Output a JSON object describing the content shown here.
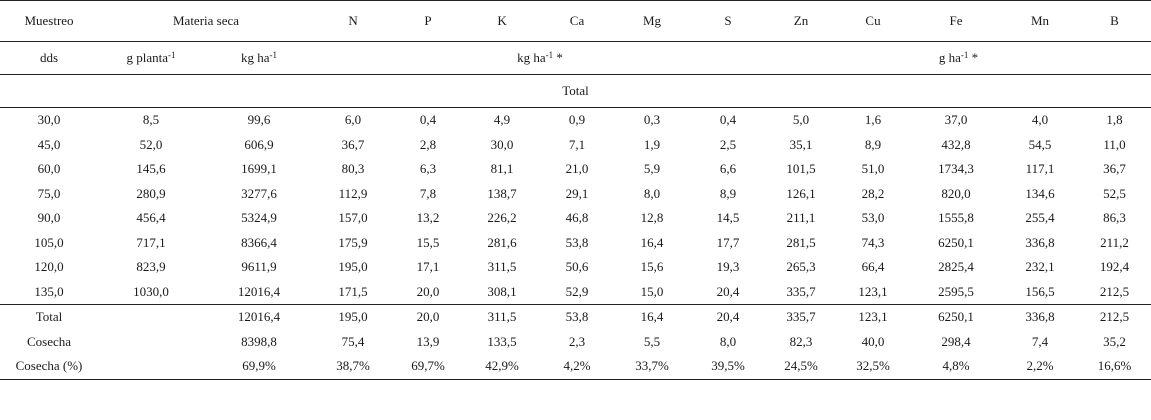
{
  "header": {
    "muestreo": "Muestreo",
    "materia_seca": "Materia seca",
    "nutrients": [
      "N",
      "P",
      "K",
      "Ca",
      "Mg",
      "S",
      "Zn",
      "Cu",
      "Fe",
      "Mn",
      "B"
    ],
    "dds": "dds",
    "unit_g_planta": "g planta",
    "unit_g_planta_sup": "-1",
    "unit_kg_ha": "kg ha",
    "unit_kg_ha_sup": "-1",
    "macro_unit": "kg ha",
    "macro_unit_sup": "-1",
    "macro_unit_suffix": " *",
    "micro_unit": "g ha",
    "micro_unit_sup": "-1",
    "micro_unit_suffix": " *",
    "section_total": "Total"
  },
  "rows": [
    [
      "30,0",
      "8,5",
      "99,6",
      "6,0",
      "0,4",
      "4,9",
      "0,9",
      "0,3",
      "0,4",
      "5,0",
      "1,6",
      "37,0",
      "4,0",
      "1,8"
    ],
    [
      "45,0",
      "52,0",
      "606,9",
      "36,7",
      "2,8",
      "30,0",
      "7,1",
      "1,9",
      "2,5",
      "35,1",
      "8,9",
      "432,8",
      "54,5",
      "11,0"
    ],
    [
      "60,0",
      "145,6",
      "1699,1",
      "80,3",
      "6,3",
      "81,1",
      "21,0",
      "5,9",
      "6,6",
      "101,5",
      "51,0",
      "1734,3",
      "117,1",
      "36,7"
    ],
    [
      "75,0",
      "280,9",
      "3277,6",
      "112,9",
      "7,8",
      "138,7",
      "29,1",
      "8,0",
      "8,9",
      "126,1",
      "28,2",
      "820,0",
      "134,6",
      "52,5"
    ],
    [
      "90,0",
      "456,4",
      "5324,9",
      "157,0",
      "13,2",
      "226,2",
      "46,8",
      "12,8",
      "14,5",
      "211,1",
      "53,0",
      "1555,8",
      "255,4",
      "86,3"
    ],
    [
      "105,0",
      "717,1",
      "8366,4",
      "175,9",
      "15,5",
      "281,6",
      "53,8",
      "16,4",
      "17,7",
      "281,5",
      "74,3",
      "6250,1",
      "336,8",
      "211,2"
    ],
    [
      "120,0",
      "823,9",
      "9611,9",
      "195,0",
      "17,1",
      "311,5",
      "50,6",
      "15,6",
      "19,3",
      "265,3",
      "66,4",
      "2825,4",
      "232,1",
      "192,4"
    ],
    [
      "135,0",
      "1030,0",
      "12016,4",
      "171,5",
      "20,0",
      "308,1",
      "52,9",
      "15,0",
      "20,4",
      "335,7",
      "123,1",
      "2595,5",
      "156,5",
      "212,5"
    ]
  ],
  "footer": [
    [
      "Total",
      "",
      "12016,4",
      "195,0",
      "20,0",
      "311,5",
      "53,8",
      "16,4",
      "20,4",
      "335,7",
      "123,1",
      "6250,1",
      "336,8",
      "212,5"
    ],
    [
      "Cosecha",
      "",
      "8398,8",
      "75,4",
      "13,9",
      "133,5",
      "2,3",
      "5,5",
      "8,0",
      "82,3",
      "40,0",
      "298,4",
      "7,4",
      "35,2"
    ],
    [
      "Cosecha (%)",
      "",
      "69,9%",
      "38,7%",
      "69,7%",
      "42,9%",
      "4,2%",
      "33,7%",
      "39,5%",
      "24,5%",
      "32,5%",
      "4,8%",
      "2,2%",
      "16,6%"
    ]
  ]
}
